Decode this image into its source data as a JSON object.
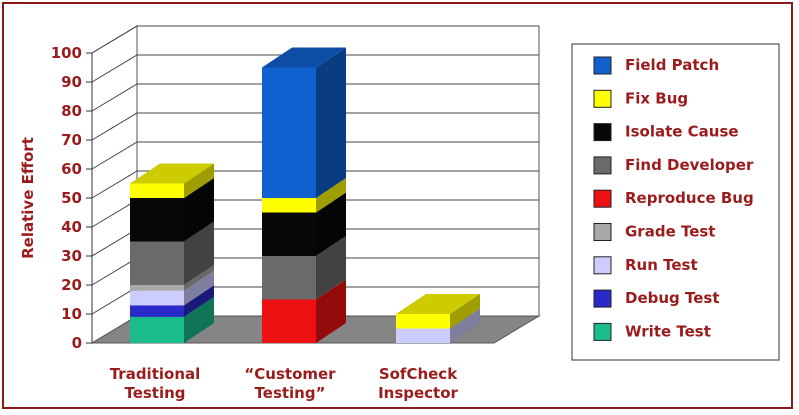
{
  "chart_data": {
    "type": "bar",
    "stacked": true,
    "three_d": true,
    "title": "",
    "xlabel": "",
    "ylabel": "Relative Effort",
    "ylim": [
      0,
      100
    ],
    "yticks": [
      0,
      10,
      20,
      30,
      40,
      50,
      60,
      70,
      80,
      90,
      100
    ],
    "grid": true,
    "legend_position": "right",
    "categories": [
      [
        "Traditional",
        "Testing"
      ],
      [
        "“Customer",
        "Testing”"
      ],
      [
        "SofCheck",
        "Inspector"
      ]
    ],
    "series": [
      {
        "name": "Write Test",
        "color": "#1abc8c",
        "values": [
          9,
          0,
          0
        ]
      },
      {
        "name": "Debug Test",
        "color": "#2a2ac8",
        "values": [
          4,
          0,
          0
        ]
      },
      {
        "name": "Run Test",
        "color": "#ccccff",
        "values": [
          5,
          0,
          5
        ]
      },
      {
        "name": "Grade Test",
        "color": "#a8a8a8",
        "values": [
          2,
          0,
          0
        ]
      },
      {
        "name": "Reproduce Bug",
        "color": "#ee1111",
        "values": [
          0,
          15,
          0
        ]
      },
      {
        "name": "Find Developer",
        "color": "#6a6a6a",
        "values": [
          15,
          15,
          0
        ]
      },
      {
        "name": "Isolate Cause",
        "color": "#080808",
        "values": [
          15,
          15,
          0
        ]
      },
      {
        "name": "Fix Bug",
        "color": "#ffff00",
        "values": [
          5,
          5,
          5
        ]
      },
      {
        "name": "Field Patch",
        "color": "#1060d0",
        "values": [
          0,
          45,
          0
        ]
      }
    ],
    "legend_order": [
      "Field Patch",
      "Fix Bug",
      "Isolate Cause",
      "Find Developer",
      "Reproduce Bug",
      "Grade Test",
      "Run Test",
      "Debug Test",
      "Write Test"
    ]
  }
}
